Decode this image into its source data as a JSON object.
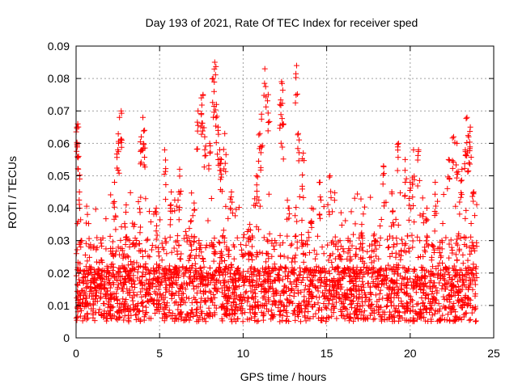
{
  "chart_data": {
    "type": "scatter",
    "title": "Day 193 of 2021, Rate Of TEC Index for receiver sped",
    "xlabel": "GPS time / hours",
    "ylabel": "ROTI / TECUs",
    "xlim": [
      0,
      25
    ],
    "ylim": [
      0,
      0.09
    ],
    "xticks": [
      "0",
      "5",
      "10",
      "15",
      "20",
      "25"
    ],
    "yticks": [
      "0",
      "0.01",
      "0.02",
      "0.03",
      "0.04",
      "0.05",
      "0.06",
      "0.07",
      "0.08",
      "0.09"
    ],
    "grid": true,
    "marker": "+",
    "color": "#ff0000",
    "x_range_of_data": [
      0,
      24
    ],
    "typical_band": [
      0.005,
      0.03
    ],
    "series": [
      {
        "x": [
          0.05,
          0.1,
          0.15,
          0.2,
          0.3,
          0.6,
          1.1,
          1.5,
          2.0,
          2.3,
          2.5,
          2.6,
          2.7,
          3.0,
          3.2,
          3.5,
          3.9,
          4.0,
          4.1,
          4.4,
          4.8,
          5.3,
          5.7,
          6.2,
          6.8,
          7.3,
          7.5,
          7.6,
          7.7,
          8.0,
          8.2,
          8.3,
          8.4,
          8.5,
          8.6,
          8.7,
          8.9,
          9.3,
          9.8,
          10.4,
          10.8,
          11.0,
          11.1,
          11.3,
          11.5,
          11.9,
          12.2,
          12.3,
          12.4,
          12.7,
          13.2,
          13.3,
          13.6,
          14.1,
          14.6,
          15.2,
          15.8,
          16.4,
          17.1,
          17.9,
          18.4,
          18.9,
          19.3,
          19.7,
          20.0,
          20.2,
          20.5,
          21.0,
          21.5,
          21.9,
          22.3,
          22.6,
          22.8,
          23.1,
          23.3,
          23.4,
          23.5,
          23.6,
          23.8
        ],
        "y": [
          0.065,
          0.066,
          0.056,
          0.045,
          0.03,
          0.022,
          0.018,
          0.024,
          0.02,
          0.048,
          0.058,
          0.068,
          0.07,
          0.041,
          0.03,
          0.035,
          0.062,
          0.068,
          0.064,
          0.025,
          0.04,
          0.058,
          0.045,
          0.052,
          0.03,
          0.07,
          0.074,
          0.075,
          0.062,
          0.06,
          0.08,
          0.085,
          0.072,
          0.065,
          0.058,
          0.055,
          0.063,
          0.045,
          0.02,
          0.035,
          0.05,
          0.063,
          0.069,
          0.083,
          0.075,
          0.03,
          0.072,
          0.079,
          0.066,
          0.04,
          0.084,
          0.063,
          0.057,
          0.04,
          0.048,
          0.05,
          0.03,
          0.025,
          0.035,
          0.03,
          0.053,
          0.045,
          0.06,
          0.055,
          0.048,
          0.058,
          0.058,
          0.04,
          0.048,
          0.03,
          0.055,
          0.062,
          0.06,
          0.052,
          0.058,
          0.068,
          0.062,
          0.065,
          0.045
        ]
      }
    ]
  }
}
